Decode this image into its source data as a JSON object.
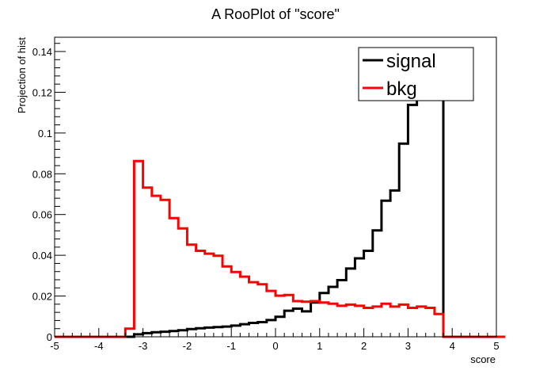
{
  "chart_data": {
    "type": "line",
    "title": "A RooPlot of \"score\"",
    "xlabel": "score",
    "ylabel": "Projection of hist",
    "xlim": [
      -5,
      5
    ],
    "ylim": [
      0,
      0.147
    ],
    "x_ticks": [
      "-5",
      "-4",
      "-3",
      "-2",
      "-1",
      "0",
      "1",
      "2",
      "3",
      "4",
      "5"
    ],
    "y_ticks": [
      "0",
      "0.02",
      "0.04",
      "0.06",
      "0.08",
      "0.1",
      "0.12",
      "0.14"
    ],
    "x_tick_values": [
      -5,
      -4,
      -3,
      -2,
      -1,
      0,
      1,
      2,
      3,
      4,
      5
    ],
    "y_tick_values": [
      0,
      0.02,
      0.04,
      0.06,
      0.08,
      0.1,
      0.12,
      0.14
    ],
    "legend_position": "top-right",
    "bin_edges_start": -5,
    "bin_width": 0.2,
    "series": [
      {
        "name": "signal",
        "color": "#000000",
        "values": [
          0,
          0,
          0,
          0,
          0,
          0,
          0,
          0,
          0,
          0.0012,
          0.0018,
          0.0022,
          0.0025,
          0.0028,
          0.0032,
          0.0038,
          0.0042,
          0.0045,
          0.0048,
          0.005,
          0.0055,
          0.0062,
          0.0068,
          0.0072,
          0.0082,
          0.0098,
          0.0128,
          0.0138,
          0.0125,
          0.0168,
          0.0215,
          0.0245,
          0.0278,
          0.0335,
          0.0385,
          0.0422,
          0.0522,
          0.0668,
          0.0718,
          0.0948,
          0.1138,
          0.1185,
          0.1215,
          0.121,
          0,
          0,
          0,
          0,
          0,
          0,
          0
        ]
      },
      {
        "name": "bkg",
        "color": "#ff0000",
        "values": [
          0,
          0,
          0,
          0,
          0,
          0,
          0,
          0,
          0.004,
          0.0862,
          0.0732,
          0.0692,
          0.0672,
          0.0582,
          0.0532,
          0.0452,
          0.0422,
          0.0408,
          0.0398,
          0.0345,
          0.0318,
          0.0295,
          0.0268,
          0.0258,
          0.0225,
          0.0202,
          0.0205,
          0.0175,
          0.0172,
          0.0175,
          0.0168,
          0.0162,
          0.0152,
          0.0158,
          0.0152,
          0.0142,
          0.0148,
          0.0162,
          0.0148,
          0.0158,
          0.0142,
          0.0148,
          0.0142,
          0.0112,
          0,
          0,
          0,
          0,
          0,
          0,
          0
        ]
      }
    ]
  }
}
